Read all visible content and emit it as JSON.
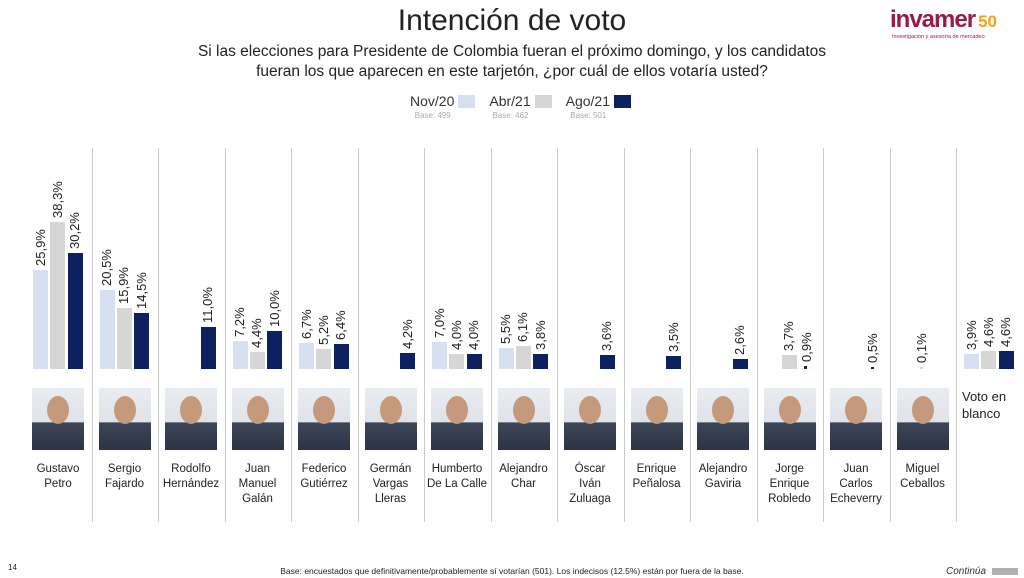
{
  "header": {
    "title": "Intención de voto",
    "subtitle_line1": "Si las elecciones para Presidente de Colombia fueran el próximo domingo, y los candidatos",
    "subtitle_line2": "fueran los que aparecen en este tarjetón, ¿por cuál de ellos votaría usted?",
    "logo_text": "invamer",
    "logo_50": "50",
    "logo_tagline": "Investigación y asesoría de mercadeo"
  },
  "footer": {
    "page_number": "14",
    "note": "Base: encuestados que definitivamente/probablemente sí votarían (501). Los indecisos (12.5%) están por fuera de la base.",
    "continue_label": "Continúa"
  },
  "chart_data": {
    "type": "bar",
    "title": "Intención de voto",
    "ylim": [
      0,
      40
    ],
    "grid": false,
    "legend_placement": "top-center",
    "series": [
      {
        "name": "Nov/20",
        "base": "Base: 499",
        "color": "#d6e0f0",
        "values": [
          25.9,
          20.5,
          null,
          7.2,
          6.7,
          null,
          7.0,
          5.5,
          null,
          null,
          null,
          null,
          null,
          null,
          3.9
        ]
      },
      {
        "name": "Abr/21",
        "base": "Base: 462",
        "color": "#d6d6d6",
        "values": [
          38.3,
          15.9,
          null,
          4.4,
          5.2,
          null,
          4.0,
          6.1,
          null,
          null,
          null,
          3.7,
          null,
          0.1,
          4.6
        ]
      },
      {
        "name": "Ago/21",
        "base": "Base: 501",
        "color": "#0d2160",
        "values": [
          30.2,
          14.5,
          11.0,
          10.0,
          6.4,
          4.2,
          4.0,
          3.8,
          3.6,
          3.5,
          2.6,
          0.9,
          0.5,
          null,
          4.6
        ]
      }
    ],
    "categories": [
      [
        "Gustavo",
        "Petro"
      ],
      [
        "Sergio",
        "Fajardo"
      ],
      [
        "Rodolfo",
        "Hernández"
      ],
      [
        "Juan",
        "Manuel",
        "Galán"
      ],
      [
        "Federico",
        "Gutiérrez"
      ],
      [
        "Germán",
        "Vargas",
        "Lleras"
      ],
      [
        "Humberto",
        "De La Calle"
      ],
      [
        "Alejandro",
        "Char"
      ],
      [
        "Óscar",
        "Iván",
        "Zuluaga"
      ],
      [
        "Enrique",
        "Peñalosa"
      ],
      [
        "Alejandro",
        "Gaviria"
      ],
      [
        "Jorge",
        "Enrique",
        "Robledo"
      ],
      [
        "Juan",
        "Carlos",
        "Echeverry"
      ],
      [
        "Miguel",
        "Ceballos"
      ],
      [
        "Voto en",
        "blanco"
      ]
    ]
  }
}
